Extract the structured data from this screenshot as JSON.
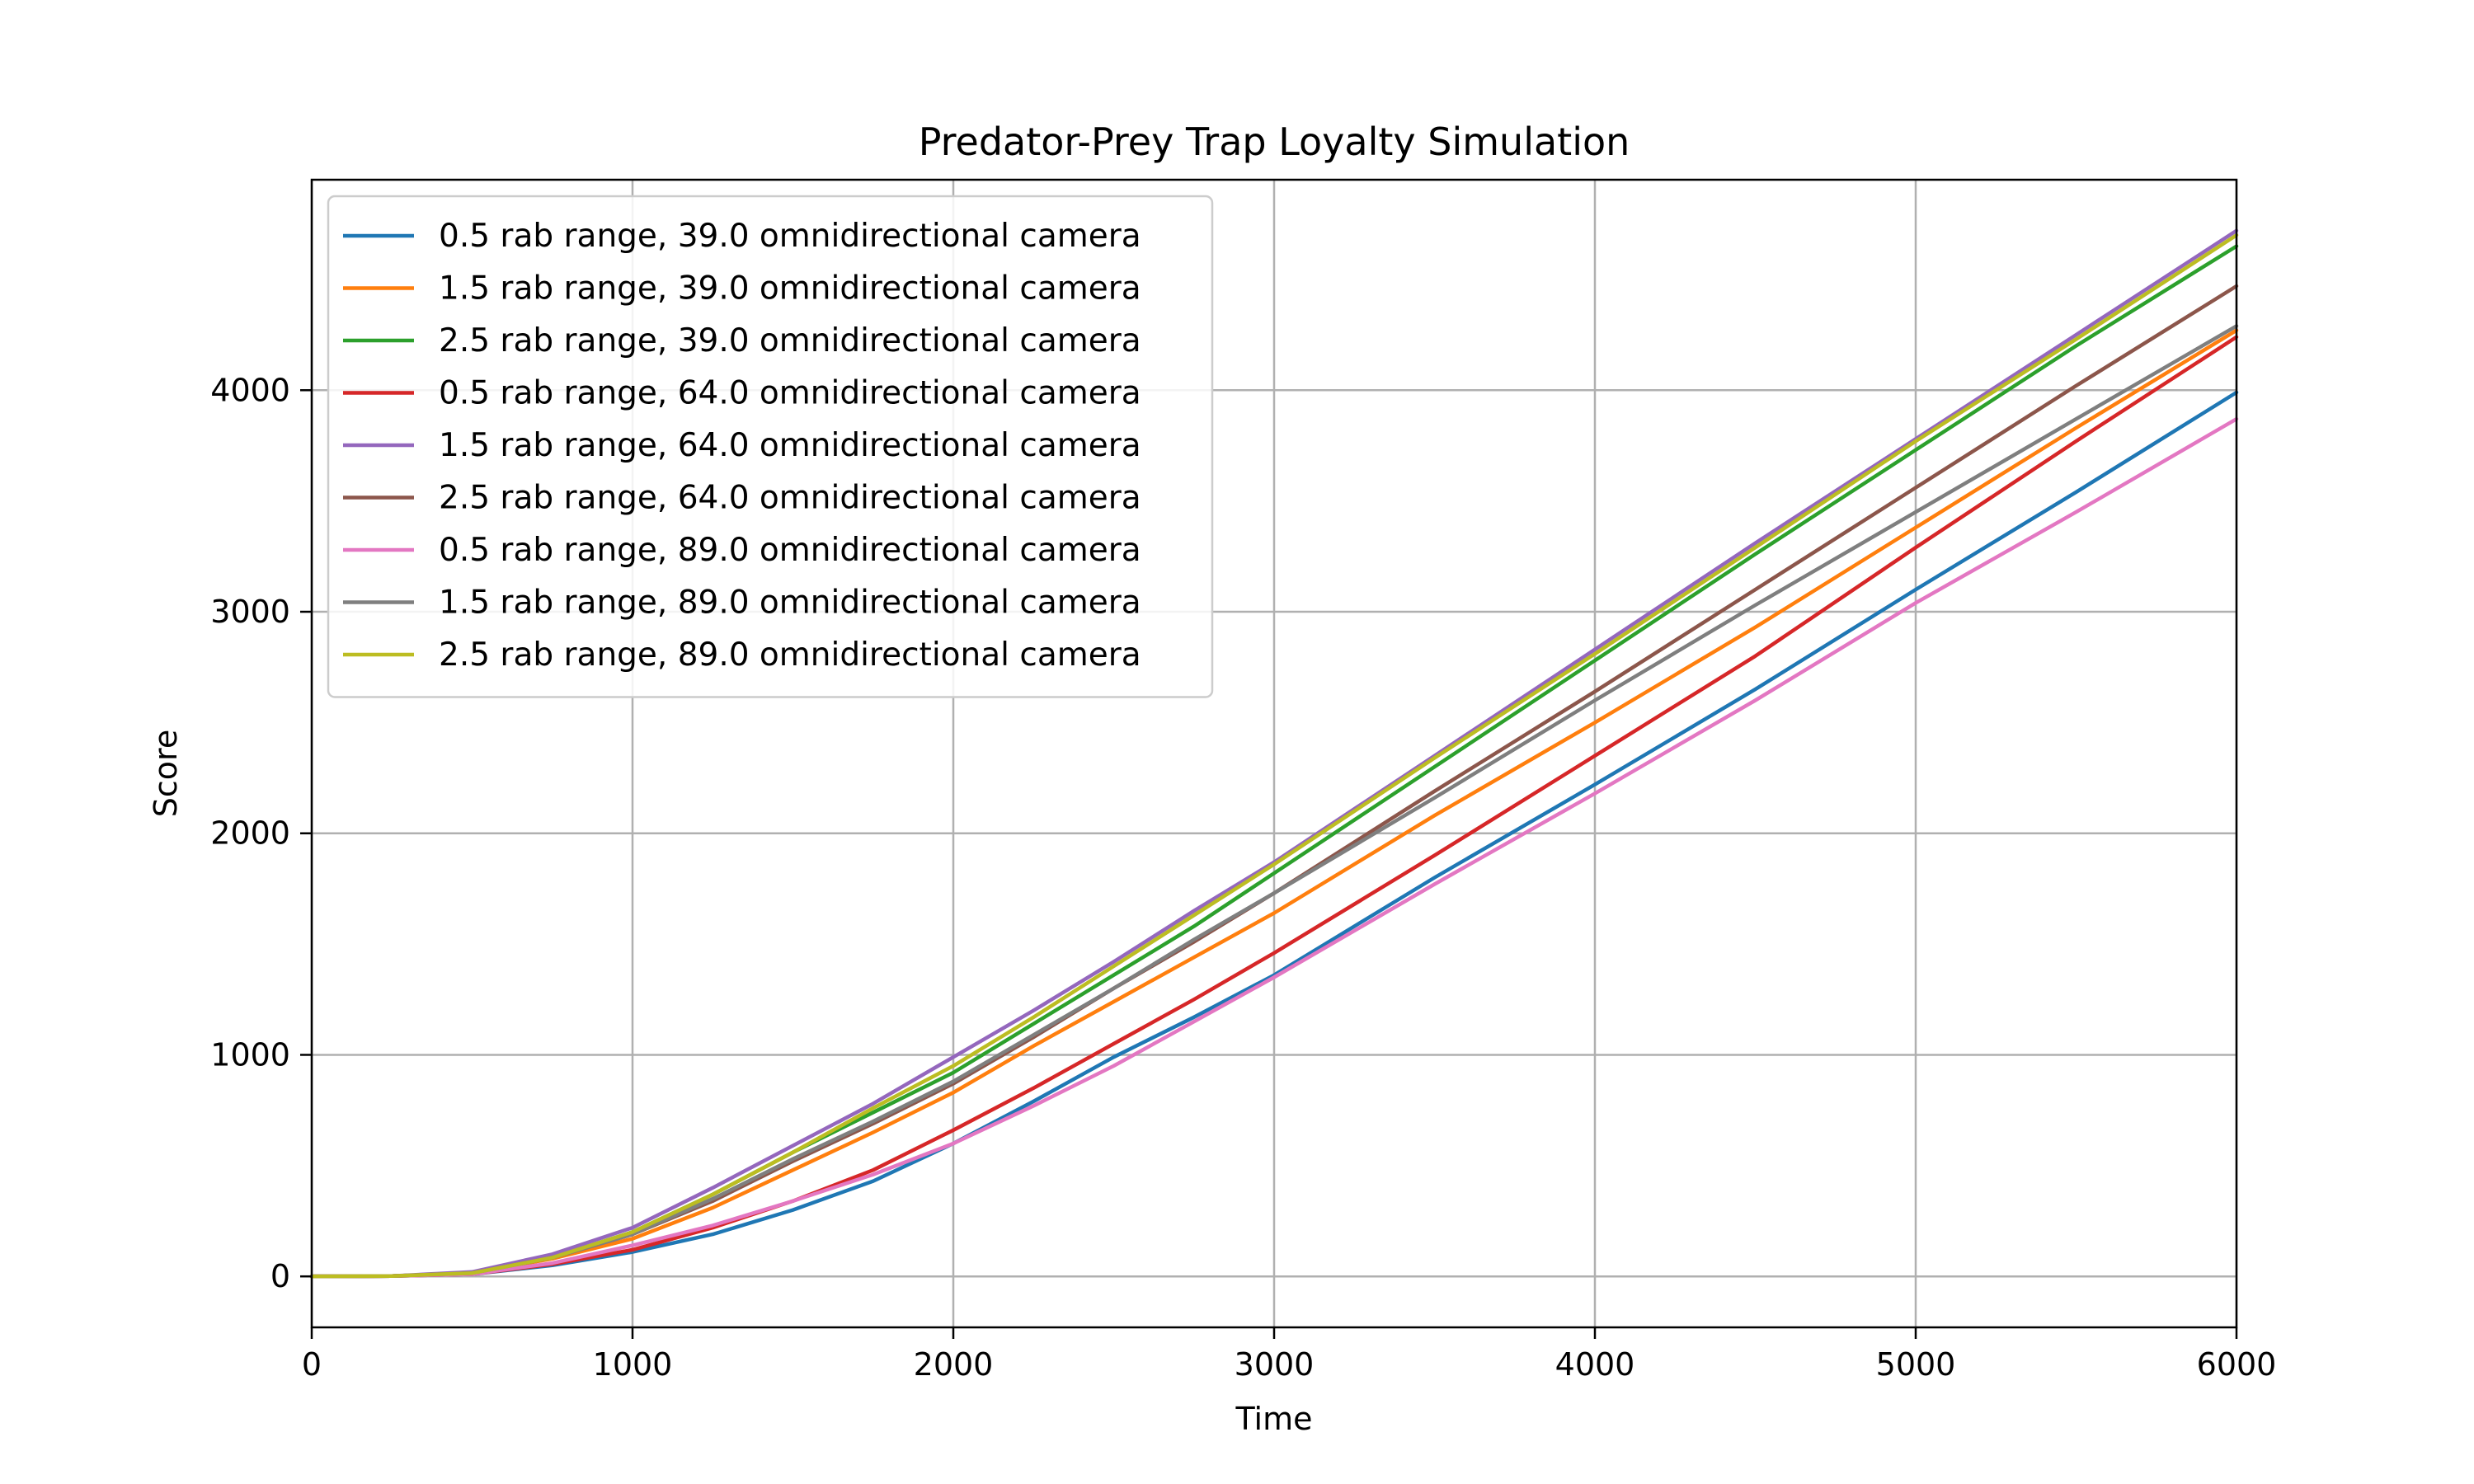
{
  "chart_data": {
    "type": "line",
    "title": "Predator-Prey Trap Loyalty Simulation",
    "xlabel": "Time",
    "ylabel": "Score",
    "xlim": [
      0,
      6000
    ],
    "ylim": [
      -230,
      4950
    ],
    "xticks": [
      0,
      1000,
      2000,
      3000,
      4000,
      5000,
      6000
    ],
    "yticks": [
      0,
      1000,
      2000,
      3000,
      4000
    ],
    "grid": true,
    "legend_position": "top-left",
    "x": [
      0,
      250,
      500,
      750,
      1000,
      1250,
      1500,
      1750,
      2000,
      2250,
      2500,
      2750,
      3000,
      3500,
      4000,
      4500,
      5000,
      5500,
      6000
    ],
    "series": [
      {
        "name": "0.5 rab range, 39.0 omnidirectional camera",
        "color": "#1f77b4",
        "values": [
          0,
          2,
          10,
          50,
          110,
          190,
          300,
          430,
          600,
          790,
          990,
          1170,
          1360,
          1800,
          2220,
          2650,
          3100,
          3540,
          3990
        ]
      },
      {
        "name": "1.5 rab range, 39.0 omnidirectional camera",
        "color": "#ff7f0e",
        "values": [
          0,
          2,
          15,
          80,
          170,
          310,
          480,
          650,
          830,
          1040,
          1240,
          1440,
          1640,
          2080,
          2500,
          2930,
          3380,
          3830,
          4270
        ]
      },
      {
        "name": "2.5 rab range, 39.0 omnidirectional camera",
        "color": "#2ca02c",
        "values": [
          0,
          2,
          15,
          85,
          200,
          370,
          560,
          740,
          920,
          1140,
          1360,
          1580,
          1820,
          2300,
          2780,
          3260,
          3730,
          4200,
          4650
        ]
      },
      {
        "name": "0.5 rab range, 64.0 omnidirectional camera",
        "color": "#d62728",
        "values": [
          0,
          2,
          10,
          55,
          120,
          220,
          340,
          480,
          660,
          850,
          1050,
          1250,
          1460,
          1900,
          2350,
          2800,
          3290,
          3770,
          4240
        ]
      },
      {
        "name": "1.5 rab range, 64.0 omnidirectional camera",
        "color": "#9467bd",
        "values": [
          0,
          2,
          20,
          100,
          220,
          400,
          590,
          780,
          990,
          1200,
          1420,
          1650,
          1870,
          2350,
          2830,
          3310,
          3780,
          4250,
          4720
        ]
      },
      {
        "name": "2.5 rab range, 64.0 omnidirectional camera",
        "color": "#8c564b",
        "values": [
          0,
          2,
          15,
          85,
          190,
          340,
          520,
          690,
          870,
          1080,
          1300,
          1510,
          1730,
          2190,
          2640,
          3100,
          3560,
          4020,
          4470
        ]
      },
      {
        "name": "0.5 rab range, 89.0 omnidirectional camera",
        "color": "#e377c2",
        "values": [
          0,
          2,
          10,
          60,
          140,
          230,
          340,
          460,
          600,
          770,
          950,
          1150,
          1350,
          1770,
          2180,
          2600,
          3040,
          3450,
          3870
        ]
      },
      {
        "name": "1.5 rab range, 89.0 omnidirectional camera",
        "color": "#7f7f7f",
        "values": [
          0,
          2,
          15,
          85,
          190,
          350,
          530,
          700,
          880,
          1090,
          1300,
          1520,
          1730,
          2160,
          2600,
          3030,
          3450,
          3870,
          4290
        ]
      },
      {
        "name": "2.5 rab range, 89.0 omnidirectional camera",
        "color": "#bcbd22",
        "values": [
          0,
          2,
          15,
          85,
          200,
          370,
          560,
          760,
          950,
          1170,
          1400,
          1630,
          1860,
          2340,
          2810,
          3290,
          3770,
          4230,
          4700
        ]
      }
    ]
  }
}
